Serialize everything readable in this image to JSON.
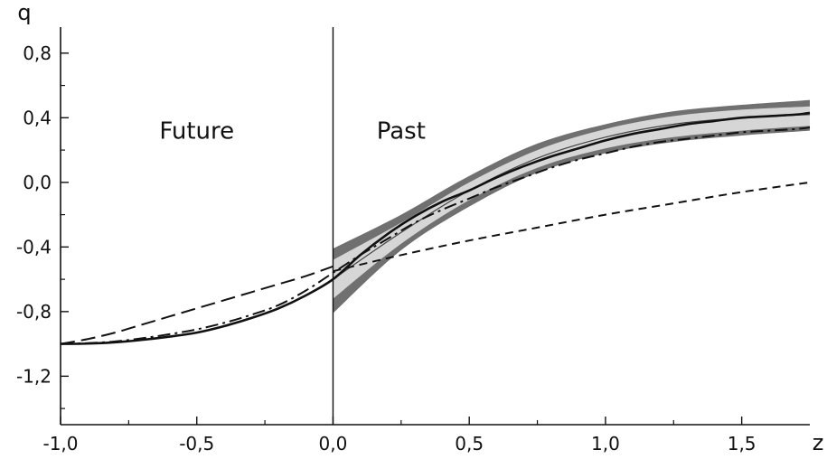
{
  "chart_data": {
    "type": "line",
    "xlabel": "z",
    "ylabel": "q",
    "xlim": [
      -1.0,
      1.75
    ],
    "ylim": [
      -1.5,
      0.95
    ],
    "x_ticks": [
      -1.0,
      -0.5,
      0.0,
      0.5,
      1.0,
      1.5
    ],
    "x_tick_labels": [
      "-1,0",
      "-0,5",
      "0,0",
      "0,5",
      "1,0",
      "1,5"
    ],
    "y_ticks": [
      0.8,
      0.4,
      0.0,
      -0.4,
      -0.8,
      -1.2
    ],
    "y_tick_labels": [
      "0,8",
      "0,4",
      "0,0",
      "-0,4",
      "-0,8",
      "-1,2"
    ],
    "grid": false,
    "divider_x": 0.0,
    "annotations": [
      {
        "text": "Future",
        "x": -0.5,
        "y": 0.32
      },
      {
        "text": "Past",
        "x": 0.25,
        "y": 0.32
      }
    ],
    "bands": [
      {
        "style": "dark",
        "color": "#707070",
        "x": [
          0.0,
          0.25,
          0.5,
          0.75,
          1.0,
          1.25,
          1.5,
          1.75
        ],
        "upper": [
          -0.41,
          -0.2,
          0.04,
          0.24,
          0.36,
          0.44,
          0.48,
          0.51
        ],
        "lower": [
          -0.81,
          -0.42,
          -0.15,
          0.06,
          0.18,
          0.25,
          0.29,
          0.32
        ]
      },
      {
        "style": "light",
        "color": "#d6d6d6",
        "x": [
          0.0,
          0.25,
          0.5,
          0.75,
          1.0,
          1.25,
          1.5,
          1.75
        ],
        "upper": [
          -0.48,
          -0.25,
          0.0,
          0.2,
          0.33,
          0.41,
          0.45,
          0.47
        ],
        "lower": [
          -0.72,
          -0.38,
          -0.11,
          0.09,
          0.21,
          0.28,
          0.32,
          0.35
        ]
      }
    ],
    "series": [
      {
        "style": "solid-thin",
        "color": "#444444",
        "x": [
          0.0,
          0.25,
          0.5,
          0.75,
          1.0,
          1.25,
          1.5,
          1.75
        ],
        "y": [
          -0.6,
          -0.31,
          -0.05,
          0.15,
          0.28,
          0.36,
          0.4,
          0.42
        ]
      },
      {
        "style": "solid-thick",
        "color": "#111111",
        "x": [
          -1.0,
          -0.9,
          -0.8,
          -0.7,
          -0.6,
          -0.5,
          -0.4,
          -0.3,
          -0.2,
          -0.1,
          0.0,
          0.1,
          0.2,
          0.3,
          0.4,
          0.5,
          0.6,
          0.7,
          0.8,
          0.9,
          1.0,
          1.1,
          1.2,
          1.3,
          1.4,
          1.5,
          1.6,
          1.7,
          1.75
        ],
        "y": [
          -1.0,
          -0.998,
          -0.99,
          -0.975,
          -0.955,
          -0.93,
          -0.89,
          -0.84,
          -0.78,
          -0.7,
          -0.6,
          -0.45,
          -0.32,
          -0.21,
          -0.12,
          -0.05,
          0.03,
          0.1,
          0.16,
          0.21,
          0.26,
          0.3,
          0.33,
          0.36,
          0.38,
          0.4,
          0.41,
          0.42,
          0.43
        ]
      },
      {
        "style": "dash-dot",
        "color": "#111111",
        "x": [
          -1.0,
          -0.9,
          -0.8,
          -0.7,
          -0.6,
          -0.5,
          -0.4,
          -0.3,
          -0.2,
          -0.1,
          0.0,
          0.1,
          0.2,
          0.3,
          0.4,
          0.5,
          0.6,
          0.7,
          0.8,
          0.9,
          1.0,
          1.1,
          1.2,
          1.3,
          1.4,
          1.5,
          1.6,
          1.7,
          1.75
        ],
        "y": [
          -1.0,
          -0.995,
          -0.985,
          -0.965,
          -0.94,
          -0.91,
          -0.87,
          -0.82,
          -0.76,
          -0.67,
          -0.56,
          -0.45,
          -0.35,
          -0.25,
          -0.17,
          -0.1,
          -0.03,
          0.03,
          0.09,
          0.14,
          0.18,
          0.22,
          0.25,
          0.27,
          0.29,
          0.31,
          0.32,
          0.33,
          0.34
        ]
      },
      {
        "style": "long-dash",
        "color": "#111111",
        "x": [
          -1.0,
          -0.9,
          -0.8,
          -0.7,
          -0.6,
          -0.5,
          -0.4,
          -0.3,
          -0.2,
          -0.1,
          0.0
        ],
        "y": [
          -1.0,
          -0.97,
          -0.93,
          -0.88,
          -0.83,
          -0.78,
          -0.73,
          -0.68,
          -0.63,
          -0.58,
          -0.52
        ]
      },
      {
        "style": "short-dash",
        "color": "#111111",
        "x": [
          0.0,
          0.25,
          0.5,
          0.75,
          1.0,
          1.25,
          1.5,
          1.75
        ],
        "y": [
          -0.55,
          -0.45,
          -0.36,
          -0.28,
          -0.2,
          -0.13,
          -0.06,
          0.0
        ]
      }
    ]
  }
}
